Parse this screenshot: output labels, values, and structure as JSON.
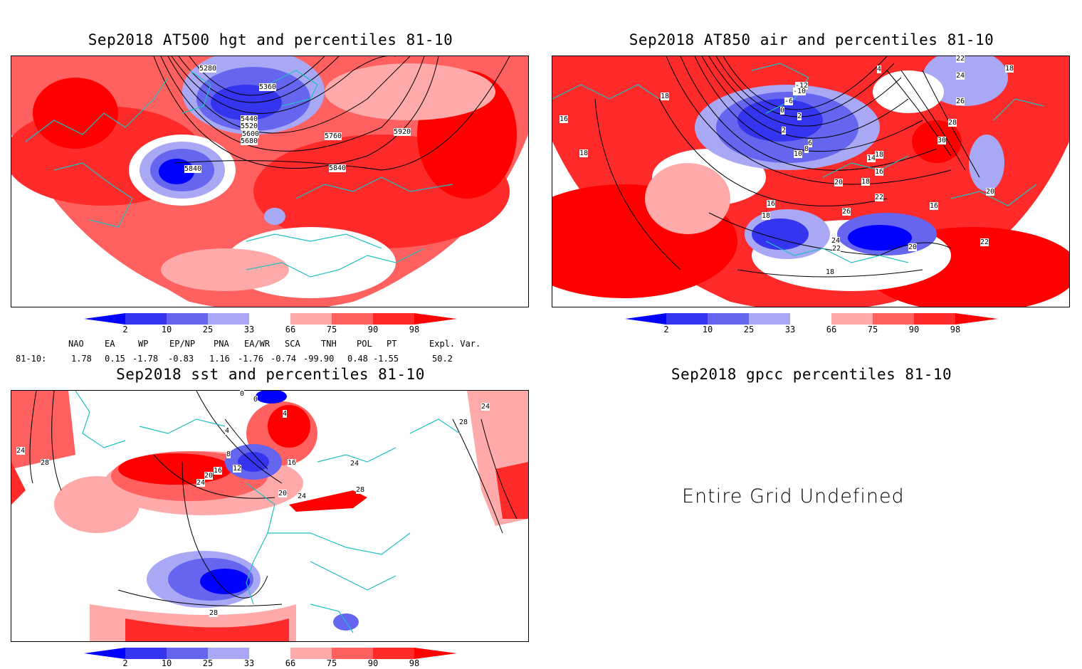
{
  "panels": {
    "hgt": {
      "title": "Sep2018 AT500 hgt and percentiles 81-10",
      "contour_labels": [
        "5280",
        "5360",
        "5440",
        "5520",
        "5600",
        "5680",
        "5760",
        "5920",
        "5840",
        "5840"
      ]
    },
    "air": {
      "title": "Sep2018 AT850 air and percentiles 81-10",
      "contour_labels": [
        "4",
        "18",
        "22",
        "24",
        "26",
        "28",
        "30",
        "18",
        "16",
        "18",
        "16",
        "18",
        "-12",
        "-10",
        "-6",
        "2",
        "0",
        "2",
        "6",
        "10",
        "8",
        "14",
        "16",
        "18",
        "20",
        "22",
        "26",
        "24",
        "22",
        "20",
        "18",
        "16",
        "20",
        "22",
        "18"
      ]
    },
    "sst": {
      "title": "Sep2018 sst and percentiles 81-10",
      "contour_labels": [
        "0",
        "0",
        "4",
        "4",
        "8",
        "16",
        "12",
        "16",
        "20",
        "24",
        "24",
        "28",
        "24",
        "28",
        "20",
        "24",
        "28",
        "24",
        "28"
      ]
    },
    "gpcc": {
      "title": "Sep2018 gpcc percentiles 81-10",
      "message": "Entire Grid Undefined"
    }
  },
  "colorbar": {
    "ticks": [
      "2",
      "10",
      "25",
      "33",
      "66",
      "75",
      "90",
      "98"
    ],
    "colors": [
      "#0000ff",
      "#3535f0",
      "#6565ef",
      "#a8a8f5",
      "#ffffff",
      "#ffaaaa",
      "#ff6060",
      "#ff2a2a",
      "#ff0000"
    ]
  },
  "teleconnection": {
    "headers": [
      "NAO",
      "EA",
      "WP",
      "EP/NP",
      "PNA",
      "EA/WR",
      "SCA",
      "TNH",
      "POL",
      "PT",
      "Expl. Var."
    ],
    "row_label": "81-10:",
    "values": [
      "1.78",
      "0.15",
      "-1.78",
      "-0.83",
      "1.16",
      "-1.76",
      "-0.74",
      "-99.90",
      "0.48",
      "-1.55",
      "50.2"
    ]
  }
}
